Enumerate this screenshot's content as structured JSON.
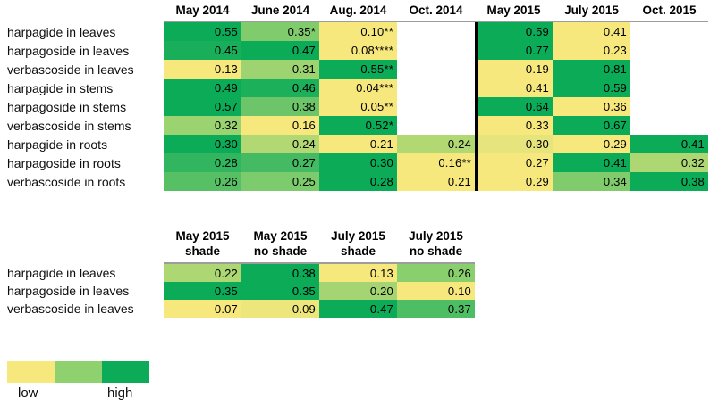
{
  "colors": {
    "scale_low": "#F7E87E",
    "scale_mid": "#8FD06F",
    "scale_high": "#0CAB58",
    "divider": "#000000",
    "header_rule": "#9C9C9C",
    "text": "#000000"
  },
  "legend": {
    "low_label": "low",
    "high_label": "high"
  },
  "chart_data": [
    {
      "type": "heatmap",
      "name": "seasonal-concentrations",
      "columns": [
        "May 2014",
        "June 2014",
        "Aug. 2014",
        "Oct. 2014",
        "May 2015",
        "July 2015",
        "Oct. 2015"
      ],
      "color_blocks": [
        [
          0,
          3
        ],
        [
          4,
          6
        ]
      ],
      "divider_after_column": 3,
      "colorscale_note": "per-row linear yellow-to-green scale computed separately for 2014 and 2015 column blocks",
      "rows": [
        {
          "label": "harpagide in leaves",
          "cells": [
            "0.55",
            "0.35*",
            "0.10**",
            null,
            "0.59",
            "0.41",
            null
          ]
        },
        {
          "label": "harpagoside in leaves",
          "cells": [
            "0.45",
            "0.47",
            "0.08****",
            null,
            "0.77",
            "0.23",
            null
          ]
        },
        {
          "label": "verbascoside in leaves",
          "cells": [
            "0.13",
            "0.31",
            "0.55**",
            null,
            "0.19",
            "0.81",
            null
          ]
        },
        {
          "label": "harpagide in stems",
          "cells": [
            "0.49",
            "0.46",
            "0.04***",
            null,
            "0.41",
            "0.59",
            null
          ]
        },
        {
          "label": "harpagoside in stems",
          "cells": [
            "0.57",
            "0.38",
            "0.05**",
            null,
            "0.64",
            "0.36",
            null
          ]
        },
        {
          "label": "verbascoside in stems",
          "cells": [
            "0.32",
            "0.16",
            "0.52*",
            null,
            "0.33",
            "0.67",
            null
          ]
        },
        {
          "label": "harpagide in roots",
          "cells": [
            "0.30",
            "0.24",
            "0.21",
            "0.24",
            "0.30",
            "0.29",
            "0.41"
          ]
        },
        {
          "label": "harpagoside in roots",
          "cells": [
            "0.28",
            "0.27",
            "0.30",
            "0.16**",
            "0.27",
            "0.41",
            "0.32"
          ]
        },
        {
          "label": "verbascoside in roots",
          "cells": [
            "0.26",
            "0.25",
            "0.28",
            "0.21",
            "0.29",
            "0.34",
            "0.38"
          ]
        }
      ]
    },
    {
      "type": "heatmap",
      "name": "shade-comparison",
      "columns": [
        "May 2015\nshade",
        "May 2015\nno shade",
        "July 2015\nshade",
        "July 2015\nno shade"
      ],
      "color_blocks": [
        [
          0,
          3
        ]
      ],
      "divider_after_column": null,
      "colorscale_note": "per-row linear yellow-to-green scale across all four columns",
      "rows": [
        {
          "label": "harpagide in leaves",
          "cells": [
            "0.22",
            "0.38",
            "0.13",
            "0.26"
          ]
        },
        {
          "label": "harpagoside in leaves",
          "cells": [
            "0.35",
            "0.35",
            "0.20",
            "0.10"
          ]
        },
        {
          "label": "verbascoside in leaves",
          "cells": [
            "0.07",
            "0.09",
            "0.47",
            "0.37"
          ]
        }
      ]
    }
  ]
}
